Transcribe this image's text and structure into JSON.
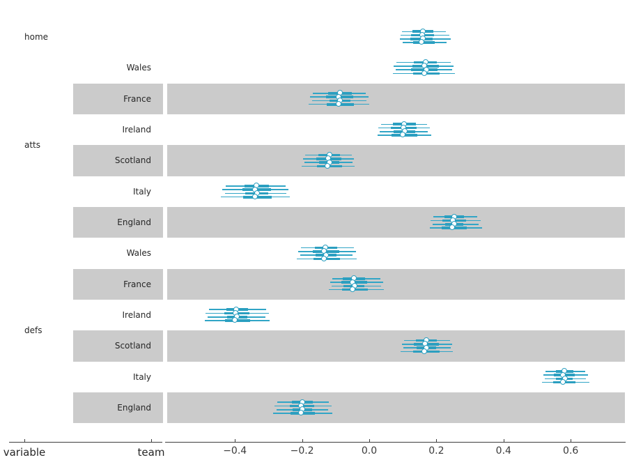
{
  "figure": {
    "band_color": "#cbcbcb",
    "line_color": "#31a5c6",
    "thick_color": "#2b9fc0",
    "marker_fill": "#ffffff",
    "text_color": "#262626",
    "axis_color": "#3c3c3c",
    "background": "#ffffff"
  },
  "chart_data": {
    "type": "forest",
    "title": "",
    "xlabel": "",
    "ylabel": "",
    "bottom_labels": [
      "variable",
      "team"
    ],
    "legend": null,
    "grid": false,
    "xlim": [
      -0.61,
      0.76
    ],
    "x_ticks": [
      -0.4,
      -0.2,
      0.0,
      0.2,
      0.4,
      0.6
    ],
    "x_tick_labels": [
      "−0.4",
      "−0.2",
      "0.0",
      "0.2",
      "0.4",
      "0.6"
    ],
    "n_chains": 4,
    "interval_format": [
      "low",
      "q1",
      "median",
      "q3",
      "high"
    ],
    "groups": [
      {
        "label": "home",
        "start": 0,
        "end": 0
      },
      {
        "label": "atts",
        "start": 1,
        "end": 6
      },
      {
        "label": "defs",
        "start": 7,
        "end": 12
      }
    ],
    "rows": [
      {
        "group": "home",
        "team": "",
        "shaded": false,
        "chains": [
          [
            0.098,
            0.128,
            0.161,
            0.19,
            0.229
          ],
          [
            0.094,
            0.124,
            0.158,
            0.193,
            0.238
          ],
          [
            0.091,
            0.122,
            0.162,
            0.188,
            0.243
          ],
          [
            0.099,
            0.13,
            0.157,
            0.195,
            0.231
          ]
        ]
      },
      {
        "group": "atts",
        "team": "Wales",
        "shaded": false,
        "chains": [
          [
            0.081,
            0.133,
            0.169,
            0.201,
            0.243
          ],
          [
            0.073,
            0.128,
            0.166,
            0.207,
            0.251
          ],
          [
            0.078,
            0.125,
            0.171,
            0.203,
            0.246
          ],
          [
            0.07,
            0.131,
            0.165,
            0.21,
            0.255
          ]
        ]
      },
      {
        "group": "atts",
        "team": "France",
        "shaded": true,
        "chains": [
          [
            -0.168,
            -0.122,
            -0.086,
            -0.052,
            -0.01
          ],
          [
            -0.176,
            -0.128,
            -0.09,
            -0.048,
            -0.003
          ],
          [
            -0.17,
            -0.119,
            -0.085,
            -0.055,
            -0.008
          ],
          [
            -0.181,
            -0.126,
            -0.091,
            -0.046,
            -0.001
          ]
        ]
      },
      {
        "group": "atts",
        "team": "Ireland",
        "shaded": false,
        "chains": [
          [
            0.035,
            0.07,
            0.106,
            0.138,
            0.172
          ],
          [
            0.028,
            0.065,
            0.102,
            0.142,
            0.181
          ],
          [
            0.032,
            0.072,
            0.107,
            0.136,
            0.175
          ],
          [
            0.025,
            0.067,
            0.101,
            0.144,
            0.184
          ]
        ]
      },
      {
        "group": "atts",
        "team": "Scotland",
        "shaded": true,
        "chains": [
          [
            -0.19,
            -0.152,
            -0.118,
            -0.088,
            -0.052
          ],
          [
            -0.198,
            -0.158,
            -0.122,
            -0.082,
            -0.045
          ],
          [
            -0.192,
            -0.15,
            -0.117,
            -0.09,
            -0.05
          ],
          [
            -0.201,
            -0.156,
            -0.123,
            -0.08,
            -0.043
          ]
        ]
      },
      {
        "group": "atts",
        "team": "Italy",
        "shaded": false,
        "chains": [
          [
            -0.428,
            -0.372,
            -0.334,
            -0.298,
            -0.248
          ],
          [
            -0.438,
            -0.378,
            -0.338,
            -0.292,
            -0.24
          ],
          [
            -0.43,
            -0.37,
            -0.333,
            -0.3,
            -0.246
          ],
          [
            -0.441,
            -0.376,
            -0.339,
            -0.29,
            -0.237
          ]
        ]
      },
      {
        "group": "atts",
        "team": "England",
        "shaded": true,
        "chains": [
          [
            0.19,
            0.224,
            0.254,
            0.282,
            0.322
          ],
          [
            0.183,
            0.218,
            0.25,
            0.288,
            0.332
          ],
          [
            0.188,
            0.226,
            0.255,
            0.28,
            0.325
          ],
          [
            0.18,
            0.216,
            0.249,
            0.29,
            0.336
          ]
        ]
      },
      {
        "group": "defs",
        "team": "Wales",
        "shaded": false,
        "chains": [
          [
            -0.204,
            -0.162,
            -0.129,
            -0.095,
            -0.046
          ],
          [
            -0.212,
            -0.168,
            -0.133,
            -0.089,
            -0.04
          ],
          [
            -0.206,
            -0.16,
            -0.128,
            -0.097,
            -0.05
          ],
          [
            -0.215,
            -0.166,
            -0.134,
            -0.087,
            -0.037
          ]
        ]
      },
      {
        "group": "defs",
        "team": "France",
        "shaded": true,
        "chains": [
          [
            -0.11,
            -0.078,
            -0.044,
            -0.012,
            0.033
          ],
          [
            -0.117,
            -0.083,
            -0.048,
            -0.007,
            0.041
          ],
          [
            -0.112,
            -0.076,
            -0.043,
            -0.015,
            0.036
          ],
          [
            -0.12,
            -0.081,
            -0.049,
            -0.005,
            0.044
          ]
        ]
      },
      {
        "group": "defs",
        "team": "Ireland",
        "shaded": false,
        "chains": [
          [
            -0.478,
            -0.426,
            -0.394,
            -0.362,
            -0.306
          ],
          [
            -0.487,
            -0.432,
            -0.398,
            -0.357,
            -0.299
          ],
          [
            -0.481,
            -0.424,
            -0.393,
            -0.364,
            -0.309
          ],
          [
            -0.49,
            -0.43,
            -0.399,
            -0.355,
            -0.296
          ]
        ]
      },
      {
        "group": "defs",
        "team": "Scotland",
        "shaded": true,
        "chains": [
          [
            0.104,
            0.139,
            0.171,
            0.202,
            0.24
          ],
          [
            0.097,
            0.133,
            0.167,
            0.207,
            0.247
          ],
          [
            0.102,
            0.141,
            0.172,
            0.2,
            0.242
          ],
          [
            0.094,
            0.131,
            0.166,
            0.209,
            0.25
          ]
        ]
      },
      {
        "group": "defs",
        "team": "Italy",
        "shaded": false,
        "chains": [
          [
            0.525,
            0.555,
            0.583,
            0.608,
            0.644
          ],
          [
            0.518,
            0.549,
            0.579,
            0.613,
            0.652
          ],
          [
            0.523,
            0.557,
            0.584,
            0.606,
            0.646
          ],
          [
            0.515,
            0.547,
            0.578,
            0.615,
            0.655
          ]
        ]
      },
      {
        "group": "defs",
        "team": "England",
        "shaded": true,
        "chains": [
          [
            -0.274,
            -0.231,
            -0.198,
            -0.168,
            -0.12
          ],
          [
            -0.283,
            -0.237,
            -0.202,
            -0.163,
            -0.113
          ],
          [
            -0.276,
            -0.229,
            -0.197,
            -0.17,
            -0.123
          ],
          [
            -0.286,
            -0.235,
            -0.203,
            -0.161,
            -0.11
          ]
        ]
      }
    ]
  }
}
